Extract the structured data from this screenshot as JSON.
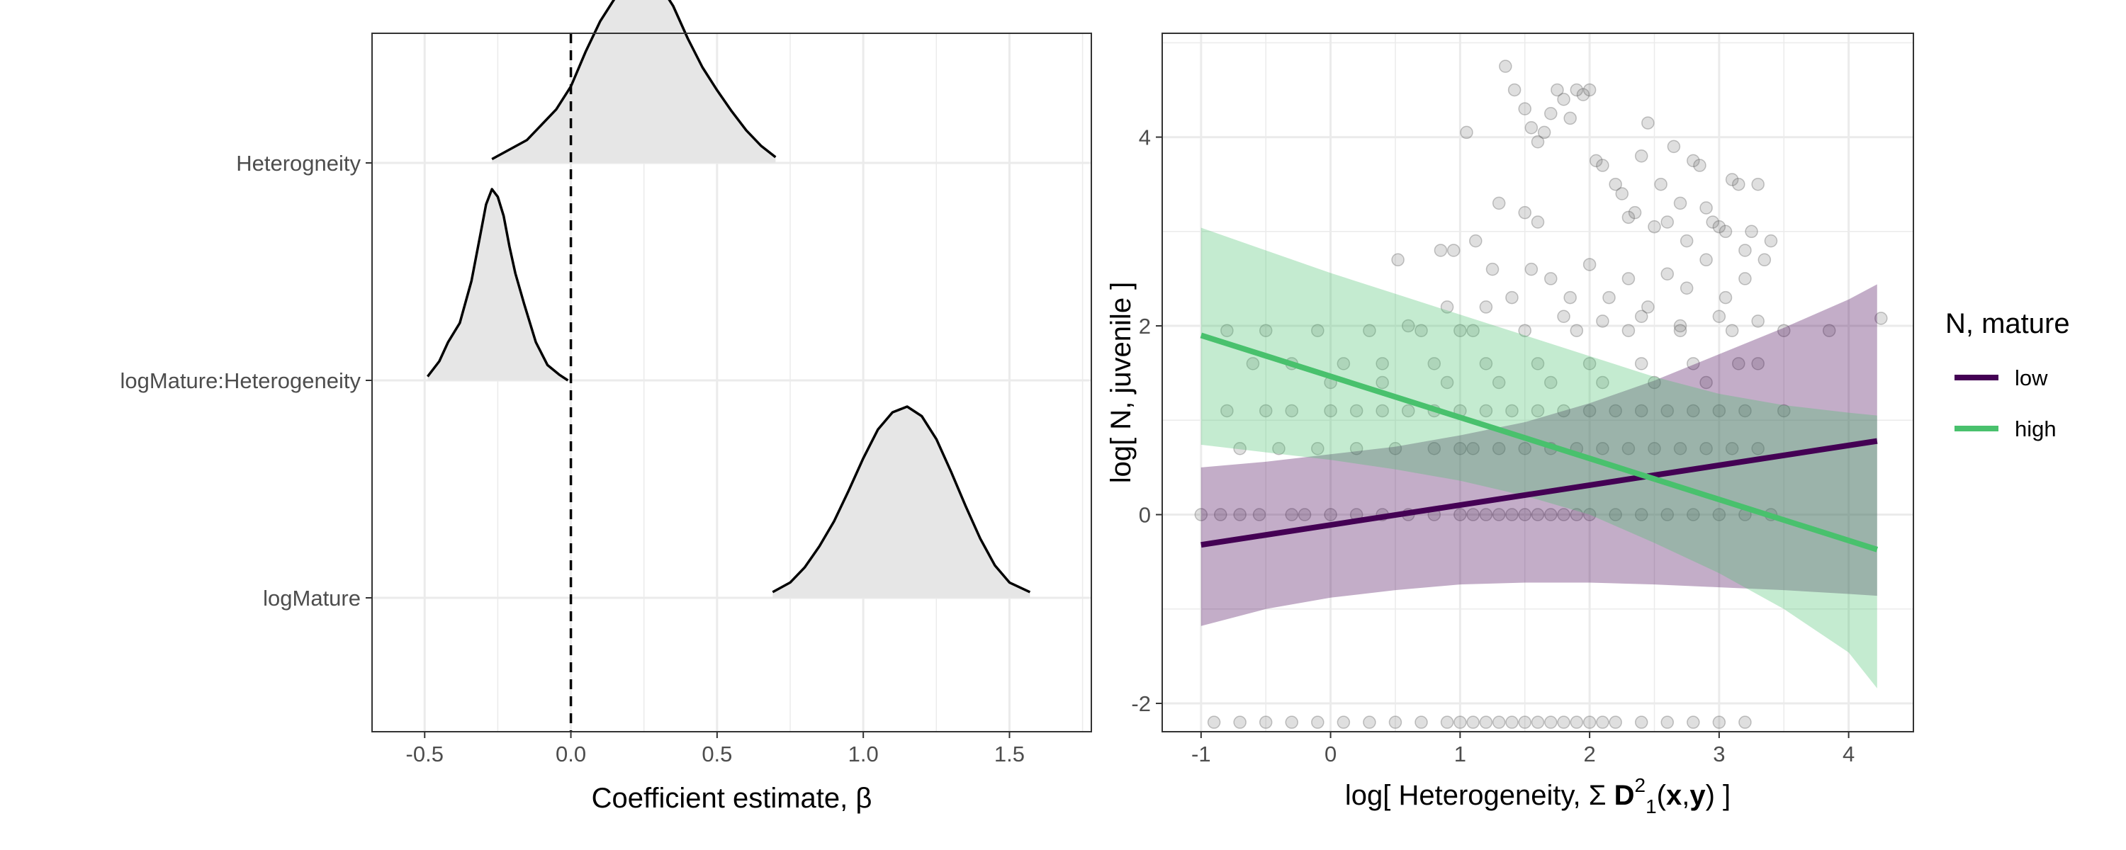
{
  "chart_data": [
    {
      "type": "area",
      "subtype": "posterior-density-ridges",
      "xlabel": "Coefficient estimate, β",
      "ylabel": "",
      "xlim": [
        -0.68,
        1.78
      ],
      "x_ticks": [
        -0.5,
        0.0,
        0.5,
        1.0,
        1.5
      ],
      "x_tick_labels": [
        "-0.5",
        "0.0",
        "0.5",
        "1.0",
        "1.5"
      ],
      "reference_line_x": 0,
      "grid": true,
      "categories": [
        "Heterogneity",
        "logMature:Heterogeneity",
        "logMature"
      ],
      "series": [
        {
          "category": "Heterogneity",
          "x": [
            -0.27,
            -0.15,
            -0.05,
            0.0,
            0.05,
            0.1,
            0.15,
            0.2,
            0.25,
            0.3,
            0.35,
            0.4,
            0.45,
            0.5,
            0.55,
            0.6,
            0.65,
            0.7
          ],
          "density": [
            0.02,
            0.12,
            0.28,
            0.4,
            0.58,
            0.74,
            0.86,
            0.95,
            1.0,
            0.94,
            0.82,
            0.65,
            0.5,
            0.38,
            0.27,
            0.17,
            0.09,
            0.03
          ]
        },
        {
          "category": "logMature:Heterogeneity",
          "x": [
            -0.49,
            -0.45,
            -0.42,
            -0.38,
            -0.34,
            -0.31,
            -0.29,
            -0.27,
            -0.25,
            -0.23,
            -0.21,
            -0.19,
            -0.16,
            -0.12,
            -0.08,
            -0.04,
            -0.01
          ],
          "density": [
            0.02,
            0.1,
            0.2,
            0.3,
            0.52,
            0.76,
            0.92,
            1.0,
            0.96,
            0.86,
            0.7,
            0.56,
            0.4,
            0.2,
            0.08,
            0.03,
            0.0
          ]
        },
        {
          "category": "logMature",
          "x": [
            0.69,
            0.75,
            0.8,
            0.85,
            0.9,
            0.95,
            1.0,
            1.05,
            1.1,
            1.15,
            1.2,
            1.25,
            1.3,
            1.35,
            1.4,
            1.45,
            1.5,
            1.57
          ],
          "density": [
            0.03,
            0.08,
            0.16,
            0.27,
            0.4,
            0.56,
            0.73,
            0.88,
            0.97,
            1.0,
            0.95,
            0.83,
            0.66,
            0.48,
            0.31,
            0.17,
            0.08,
            0.03
          ]
        }
      ]
    },
    {
      "type": "scatter",
      "subtype": "scatter-with-regression-ribbons",
      "xlabel_prefix": "log[ Heterogeneity, Σ ",
      "xlabel_bold": "D",
      "xlabel_sup": "2",
      "xlabel_sub": "1",
      "xlabel_paren_open": "(",
      "xlabel_bold_x": "x",
      "xlabel_comma": ",",
      "xlabel_bold_y": "y",
      "xlabel_suffix": ") ]",
      "ylabel": "log[ N, juvenile ]",
      "xlim": [
        -1.3,
        4.5
      ],
      "ylim": [
        -2.3,
        5.1
      ],
      "x_ticks": [
        -1,
        0,
        1,
        2,
        3,
        4
      ],
      "x_tick_labels": [
        "-1",
        "0",
        "1",
        "2",
        "3",
        "4"
      ],
      "y_ticks": [
        -2,
        0,
        2,
        4
      ],
      "y_tick_labels": [
        "-2",
        "0",
        "2",
        "4"
      ],
      "grid": true,
      "legend": {
        "title": "N, mature",
        "placement": "right",
        "entries": [
          "low",
          "high"
        ]
      },
      "series": [
        {
          "name": "low",
          "color": "#440154",
          "line": {
            "x": [
              -1,
              4.22
            ],
            "y": [
              -0.32,
              0.78
            ]
          },
          "ribbon": {
            "x": [
              -1,
              -0.5,
              0,
              0.5,
              1,
              1.5,
              2,
              2.5,
              3,
              3.5,
              4,
              4.22
            ],
            "lower": [
              -1.18,
              -1.0,
              -0.88,
              -0.8,
              -0.74,
              -0.72,
              -0.72,
              -0.74,
              -0.77,
              -0.8,
              -0.84,
              -0.86
            ],
            "upper": [
              0.5,
              0.56,
              0.64,
              0.72,
              0.84,
              0.98,
              1.18,
              1.42,
              1.7,
              1.98,
              2.28,
              2.44
            ]
          }
        },
        {
          "name": "high",
          "color": "#49C16D",
          "line": {
            "x": [
              -1,
              4.22
            ],
            "y": [
              1.9,
              -0.37
            ]
          },
          "ribbon": {
            "x": [
              -1,
              -0.5,
              0,
              0.5,
              1,
              1.5,
              2,
              2.5,
              3,
              3.5,
              4,
              4.22
            ],
            "lower": [
              0.74,
              0.66,
              0.58,
              0.48,
              0.36,
              0.2,
              0.0,
              -0.3,
              -0.62,
              -1.0,
              -1.46,
              -1.84
            ],
            "upper": [
              3.04,
              2.8,
              2.56,
              2.34,
              2.12,
              1.9,
              1.68,
              1.46,
              1.28,
              1.16,
              1.08,
              1.05
            ]
          }
        }
      ],
      "points": [
        [
          0.52,
          2.7
        ],
        [
          0.85,
          2.8
        ],
        [
          0.95,
          2.8
        ],
        [
          1.05,
          4.05
        ],
        [
          1.12,
          2.9
        ],
        [
          1.25,
          2.6
        ],
        [
          1.3,
          3.3
        ],
        [
          1.35,
          4.75
        ],
        [
          1.42,
          4.5
        ],
        [
          1.5,
          4.3
        ],
        [
          1.55,
          4.1
        ],
        [
          1.6,
          3.95
        ],
        [
          1.65,
          4.05
        ],
        [
          1.5,
          3.2
        ],
        [
          1.6,
          3.1
        ],
        [
          1.7,
          4.25
        ],
        [
          1.75,
          4.5
        ],
        [
          1.8,
          4.4
        ],
        [
          1.85,
          4.2
        ],
        [
          1.9,
          4.5
        ],
        [
          1.95,
          4.45
        ],
        [
          2.0,
          4.5
        ],
        [
          2.05,
          3.75
        ],
        [
          2.1,
          3.7
        ],
        [
          2.2,
          3.5
        ],
        [
          2.25,
          3.4
        ],
        [
          2.3,
          3.15
        ],
        [
          2.35,
          3.2
        ],
        [
          2.4,
          3.8
        ],
        [
          2.45,
          4.15
        ],
        [
          2.5,
          3.05
        ],
        [
          2.55,
          3.5
        ],
        [
          2.6,
          3.1
        ],
        [
          2.65,
          3.9
        ],
        [
          2.7,
          3.3
        ],
        [
          2.75,
          2.9
        ],
        [
          2.8,
          3.75
        ],
        [
          2.85,
          3.7
        ],
        [
          2.9,
          3.25
        ],
        [
          2.95,
          3.1
        ],
        [
          3.0,
          3.05
        ],
        [
          3.05,
          3.0
        ],
        [
          3.1,
          3.55
        ],
        [
          3.15,
          3.5
        ],
        [
          3.2,
          2.8
        ],
        [
          3.25,
          3.0
        ],
        [
          3.3,
          3.5
        ],
        [
          3.35,
          2.7
        ],
        [
          3.4,
          2.9
        ],
        [
          1.2,
          2.2
        ],
        [
          1.4,
          2.3
        ],
        [
          1.55,
          2.6
        ],
        [
          1.7,
          2.5
        ],
        [
          1.85,
          2.3
        ],
        [
          2.0,
          2.65
        ],
        [
          2.15,
          2.3
        ],
        [
          2.3,
          2.5
        ],
        [
          2.45,
          2.2
        ],
        [
          2.6,
          2.55
        ],
        [
          2.75,
          2.4
        ],
        [
          2.9,
          2.7
        ],
        [
          3.05,
          2.3
        ],
        [
          3.2,
          2.5
        ],
        [
          1.8,
          2.1
        ],
        [
          2.1,
          2.05
        ],
        [
          2.4,
          2.1
        ],
        [
          2.7,
          2.0
        ],
        [
          3.0,
          2.1
        ],
        [
          3.3,
          2.05
        ],
        [
          0.6,
          2.0
        ],
        [
          0.9,
          2.2
        ],
        [
          1.0,
          1.95
        ],
        [
          -0.8,
          1.95
        ],
        [
          -0.5,
          1.95
        ],
        [
          -0.1,
          1.95
        ],
        [
          0.3,
          1.95
        ],
        [
          0.7,
          1.95
        ],
        [
          1.1,
          1.95
        ],
        [
          1.5,
          1.95
        ],
        [
          1.9,
          1.95
        ],
        [
          2.3,
          1.95
        ],
        [
          2.7,
          1.95
        ],
        [
          3.1,
          1.95
        ],
        [
          3.5,
          1.95
        ],
        [
          3.85,
          1.95
        ],
        [
          4.25,
          2.08
        ],
        [
          -0.6,
          1.6
        ],
        [
          -0.3,
          1.6
        ],
        [
          0.1,
          1.6
        ],
        [
          0.4,
          1.6
        ],
        [
          0.8,
          1.6
        ],
        [
          1.2,
          1.6
        ],
        [
          1.6,
          1.6
        ],
        [
          2.0,
          1.6
        ],
        [
          2.4,
          1.6
        ],
        [
          2.8,
          1.6
        ],
        [
          3.15,
          1.6
        ],
        [
          3.3,
          1.6
        ],
        [
          -0.8,
          1.1
        ],
        [
          -0.5,
          1.1
        ],
        [
          -0.3,
          1.1
        ],
        [
          0.0,
          1.1
        ],
        [
          0.2,
          1.1
        ],
        [
          0.4,
          1.1
        ],
        [
          0.6,
          1.1
        ],
        [
          0.8,
          1.1
        ],
        [
          1.0,
          1.1
        ],
        [
          1.2,
          1.1
        ],
        [
          1.4,
          1.1
        ],
        [
          1.6,
          1.1
        ],
        [
          1.8,
          1.1
        ],
        [
          2.0,
          1.1
        ],
        [
          2.2,
          1.1
        ],
        [
          2.4,
          1.1
        ],
        [
          2.6,
          1.1
        ],
        [
          2.8,
          1.1
        ],
        [
          3.0,
          1.1
        ],
        [
          3.2,
          1.1
        ],
        [
          3.5,
          1.1
        ],
        [
          -0.7,
          0.7
        ],
        [
          -0.4,
          0.7
        ],
        [
          -0.1,
          0.7
        ],
        [
          0.2,
          0.7
        ],
        [
          0.5,
          0.7
        ],
        [
          0.8,
          0.7
        ],
        [
          1.0,
          0.7
        ],
        [
          1.1,
          0.7
        ],
        [
          1.3,
          0.7
        ],
        [
          1.5,
          0.7
        ],
        [
          1.7,
          0.7
        ],
        [
          1.9,
          0.7
        ],
        [
          2.1,
          0.7
        ],
        [
          2.3,
          0.7
        ],
        [
          2.5,
          0.7
        ],
        [
          2.7,
          0.7
        ],
        [
          2.9,
          0.7
        ],
        [
          3.1,
          0.7
        ],
        [
          3.3,
          0.7
        ],
        [
          0.0,
          1.4
        ],
        [
          0.4,
          1.4
        ],
        [
          0.9,
          1.4
        ],
        [
          1.3,
          1.4
        ],
        [
          1.7,
          1.4
        ],
        [
          2.1,
          1.4
        ],
        [
          2.5,
          1.4
        ],
        [
          2.9,
          1.4
        ],
        [
          -1.0,
          0
        ],
        [
          -0.85,
          0
        ],
        [
          -0.7,
          0
        ],
        [
          -0.55,
          0
        ],
        [
          -0.3,
          0
        ],
        [
          -0.2,
          0
        ],
        [
          0.0,
          0
        ],
        [
          0.2,
          0
        ],
        [
          0.4,
          0
        ],
        [
          0.6,
          0
        ],
        [
          0.8,
          0
        ],
        [
          1.0,
          0
        ],
        [
          1.1,
          0
        ],
        [
          1.2,
          0
        ],
        [
          1.3,
          0
        ],
        [
          1.4,
          0
        ],
        [
          1.5,
          0
        ],
        [
          1.6,
          0
        ],
        [
          1.7,
          0
        ],
        [
          1.8,
          0
        ],
        [
          1.9,
          0
        ],
        [
          2.0,
          0
        ],
        [
          2.2,
          0
        ],
        [
          2.4,
          0
        ],
        [
          2.6,
          0
        ],
        [
          2.8,
          0
        ],
        [
          3.0,
          0
        ],
        [
          3.2,
          0
        ],
        [
          3.4,
          0
        ],
        [
          -0.9,
          -2.2
        ],
        [
          -0.7,
          -2.2
        ],
        [
          -0.5,
          -2.2
        ],
        [
          -0.3,
          -2.2
        ],
        [
          -0.1,
          -2.2
        ],
        [
          0.1,
          -2.2
        ],
        [
          0.3,
          -2.2
        ],
        [
          0.5,
          -2.2
        ],
        [
          0.7,
          -2.2
        ],
        [
          0.9,
          -2.2
        ],
        [
          1.0,
          -2.2
        ],
        [
          1.1,
          -2.2
        ],
        [
          1.2,
          -2.2
        ],
        [
          1.3,
          -2.2
        ],
        [
          1.4,
          -2.2
        ],
        [
          1.5,
          -2.2
        ],
        [
          1.6,
          -2.2
        ],
        [
          1.7,
          -2.2
        ],
        [
          1.8,
          -2.2
        ],
        [
          1.9,
          -2.2
        ],
        [
          2.0,
          -2.2
        ],
        [
          2.1,
          -2.2
        ],
        [
          2.2,
          -2.2
        ],
        [
          2.4,
          -2.2
        ],
        [
          2.6,
          -2.2
        ],
        [
          2.8,
          -2.2
        ],
        [
          3.0,
          -2.2
        ],
        [
          3.2,
          -2.2
        ]
      ]
    }
  ]
}
